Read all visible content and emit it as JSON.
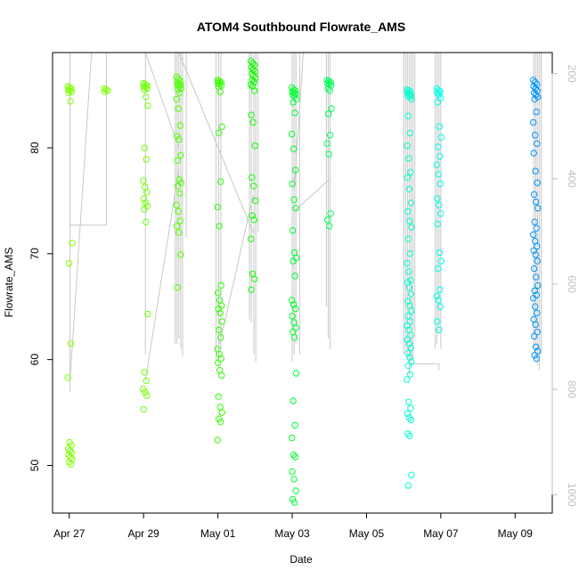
{
  "chart_data": {
    "type": "scatter",
    "title": "ATOM4 Southbound Flowrate_AMS",
    "xlabel": "Date",
    "ylabel": "Flowrate_AMS",
    "x_unit": "days since Apr 27",
    "xlim": [
      -0.45,
      13.0
    ],
    "ylim": [
      45.5,
      89.0
    ],
    "x_ticks": [
      {
        "value": 0,
        "label": "Apr 27"
      },
      {
        "value": 2,
        "label": "Apr 29"
      },
      {
        "value": 4,
        "label": "May 01"
      },
      {
        "value": 6,
        "label": "May 03"
      },
      {
        "value": 8,
        "label": "May 05"
      },
      {
        "value": 10,
        "label": "May 07"
      },
      {
        "value": 12,
        "label": "May 09"
      }
    ],
    "y_ticks": [
      50,
      60,
      70,
      80
    ],
    "secondary_axis": {
      "side": "right",
      "color": "#bfbfbf",
      "ylim": [
        1035,
        160
      ],
      "ticks": [
        200,
        400,
        600,
        800,
        1000
      ]
    },
    "series": [
      {
        "name": "Apr 27",
        "color": "#7fff00",
        "x": 0.02,
        "values": [
          85.8,
          85.7,
          85.6,
          85.5,
          85.4,
          85.3,
          85.2,
          84.4,
          71.0,
          69.1,
          61.5,
          58.3,
          52.2,
          51.9,
          51.6,
          51.4,
          51.2,
          51.0,
          50.8,
          50.6,
          50.3,
          50.1
        ]
      },
      {
        "name": "Apr 28",
        "color": "#7fff00",
        "x": 1.0,
        "values": [
          85.6,
          85.5,
          85.4,
          85.3
        ]
      },
      {
        "name": "Apr 29",
        "color": "#6fff00",
        "x": 2.05,
        "values": [
          86.1,
          86.0,
          85.9,
          85.8,
          85.7,
          85.6,
          85.5,
          84.8,
          84.0,
          80.0,
          78.9,
          76.9,
          76.3,
          75.8,
          75.2,
          74.8,
          74.5,
          74.2,
          73.0,
          64.3,
          58.8,
          58.0,
          57.2,
          56.9,
          56.6,
          55.3
        ]
      },
      {
        "name": "Apr 30",
        "color": "#4fff00",
        "x": 2.95,
        "values": [
          86.7,
          86.5,
          86.3,
          86.2,
          86.1,
          86.0,
          85.9,
          85.8,
          85.6,
          85.5,
          85.2,
          84.6,
          83.7,
          82.1,
          81.1,
          80.8,
          79.3,
          78.8,
          77.0,
          76.7,
          76.4,
          75.7,
          74.6,
          74.0,
          73.1,
          72.6,
          72.0,
          69.9,
          66.8
        ]
      },
      {
        "name": "May 01",
        "color": "#2fff00",
        "x": 4.05,
        "values": [
          86.4,
          86.3,
          86.2,
          86.1,
          86.0,
          85.9,
          85.8,
          85.3,
          82.0,
          81.4,
          76.8,
          74.4,
          72.6,
          67.0,
          66.3,
          65.6,
          65.1,
          64.8,
          64.4,
          63.6,
          62.8,
          62.1,
          61.0,
          60.5,
          60.1,
          59.7,
          59.0,
          58.5,
          56.5,
          55.5,
          55.0,
          54.4,
          54.1,
          52.4
        ]
      },
      {
        "name": "May 02",
        "color": "#0fff00",
        "x": 4.95,
        "values": [
          88.2,
          88.0,
          87.8,
          87.6,
          87.4,
          87.2,
          87.0,
          86.8,
          86.6,
          86.4,
          86.2,
          86.0,
          85.8,
          85.4,
          83.1,
          82.4,
          80.2,
          77.2,
          76.4,
          75.0,
          73.6,
          73.2,
          71.4,
          68.1,
          67.6,
          66.6
        ]
      },
      {
        "name": "May 03",
        "color": "#00ff30",
        "x": 6.05,
        "values": [
          85.7,
          85.5,
          85.4,
          85.3,
          85.2,
          85.1,
          85.0,
          84.9,
          84.6,
          84.3,
          83.3,
          81.3,
          79.9,
          77.9,
          76.6,
          75.1,
          74.3,
          72.2,
          70.1,
          69.6,
          69.3,
          67.9,
          65.6,
          65.2,
          64.8,
          64.1,
          63.5,
          63.0,
          62.6,
          62.1,
          58.7,
          56.1,
          53.8,
          52.6,
          51.0,
          50.8,
          49.4,
          48.7,
          47.6,
          46.8,
          46.5
        ]
      },
      {
        "name": "May 04",
        "color": "#00ff50",
        "x": 7.0,
        "values": [
          86.4,
          86.3,
          86.2,
          86.1,
          86.0,
          85.9,
          85.6,
          85.4,
          83.7,
          83.2,
          81.2,
          80.4,
          79.4,
          73.8,
          73.2,
          72.6
        ]
      },
      {
        "name": "May 06",
        "color": "#00ffd0",
        "x": 9.15,
        "values": [
          85.5,
          85.4,
          85.3,
          85.2,
          85.1,
          85.0,
          84.9,
          84.8,
          84.6,
          83.0,
          81.4,
          80.2,
          79.0,
          77.7,
          77.2,
          76.1,
          74.8,
          74.0,
          73.1,
          72.5,
          71.4,
          70.0,
          69.1,
          68.3,
          67.5,
          67.3,
          66.8,
          66.2,
          65.5,
          65.1,
          64.6,
          64.1,
          63.6,
          63.2,
          62.8,
          62.3,
          61.9,
          61.5,
          61.1,
          60.6,
          60.2,
          59.8,
          59.4,
          58.6,
          58.1,
          56.0,
          55.4,
          54.9,
          54.5,
          54.3,
          53.0,
          52.8,
          49.1,
          48.1
        ]
      },
      {
        "name": "May 07",
        "color": "#00ffe8",
        "x": 9.95,
        "values": [
          85.6,
          85.4,
          85.3,
          85.2,
          85.0,
          84.7,
          84.3,
          82.0,
          81.0,
          80.1,
          79.2,
          78.4,
          77.5,
          76.6,
          75.2,
          74.6,
          73.8,
          72.8,
          70.1,
          69.3,
          68.6,
          66.6,
          66.0,
          65.6,
          65.0,
          63.6,
          62.8
        ]
      },
      {
        "name": "May 09",
        "color": "#0096ff",
        "x": 12.55,
        "values": [
          86.4,
          86.2,
          86.0,
          85.8,
          85.6,
          85.4,
          85.2,
          85.0,
          84.8,
          84.6,
          83.4,
          82.4,
          81.2,
          80.4,
          79.5,
          77.8,
          76.7,
          75.6,
          74.9,
          74.3,
          73.0,
          72.4,
          71.8,
          71.2,
          70.7,
          70.3,
          69.9,
          69.3,
          68.6,
          67.8,
          67.0,
          66.5,
          66.1,
          65.8,
          65.0,
          64.4,
          63.8,
          63.3,
          62.6,
          62.2,
          61.2,
          60.8,
          60.4,
          60.1
        ]
      }
    ],
    "background_trace": {
      "color": "#c8c8c8",
      "segments": [
        {
          "x": [
            0.02,
            0.02,
            1.0,
            1.0
          ],
          "y": [
            89.0,
            72.7,
            72.7,
            89.0
          ]
        },
        {
          "x": [
            0.02,
            0.6
          ],
          "y": [
            58.0,
            89.0
          ]
        },
        {
          "x": [
            2.05,
            2.95
          ],
          "y": [
            89.0,
            80.0
          ]
        },
        {
          "x": [
            2.05,
            2.95
          ],
          "y": [
            58.0,
            78.0
          ]
        },
        {
          "x": [
            2.95,
            4.95
          ],
          "y": [
            89.0,
            72.0
          ]
        },
        {
          "x": [
            4.05,
            4.95
          ],
          "y": [
            61.5,
            75.5
          ]
        },
        {
          "x": [
            6.05,
            7.0
          ],
          "y": [
            74.0,
            77.0
          ]
        },
        {
          "x": [
            6.05,
            6.3,
            7.0
          ],
          "y": [
            76.0,
            89.0,
            89.0
          ]
        },
        {
          "x": [
            9.15,
            9.15,
            9.95,
            9.95
          ],
          "y": [
            59.0,
            59.6,
            59.6,
            59.0
          ]
        }
      ],
      "spikes": [
        {
          "x": 0.02,
          "y_min": 57.0
        },
        {
          "x": 2.05,
          "y_min": 60.5
        },
        {
          "x": 2.85,
          "y_min": 61.5
        },
        {
          "x": 2.9,
          "y_min": 61.5
        },
        {
          "x": 2.95,
          "y_min": 62.0
        },
        {
          "x": 3.0,
          "y_min": 61.0
        },
        {
          "x": 3.05,
          "y_min": 60.3
        },
        {
          "x": 3.15,
          "y_min": 71.5
        },
        {
          "x": 3.95,
          "y_min": 60.0
        },
        {
          "x": 4.02,
          "y_min": 59.5
        },
        {
          "x": 4.08,
          "y_min": 61.0
        },
        {
          "x": 4.85,
          "y_min": 63.8
        },
        {
          "x": 4.9,
          "y_min": 63.5
        },
        {
          "x": 4.97,
          "y_min": 60.5
        },
        {
          "x": 5.02,
          "y_min": 59.8
        },
        {
          "x": 5.08,
          "y_min": 72.0
        },
        {
          "x": 6.0,
          "y_min": 59.8
        },
        {
          "x": 6.05,
          "y_min": 60.5
        },
        {
          "x": 6.1,
          "y_min": 61.5
        },
        {
          "x": 6.2,
          "y_min": 60.5
        },
        {
          "x": 6.92,
          "y_min": 65.0
        },
        {
          "x": 6.97,
          "y_min": 62.0
        },
        {
          "x": 7.02,
          "y_min": 61.0
        },
        {
          "x": 9.0,
          "y_min": 60.5
        },
        {
          "x": 9.05,
          "y_min": 61.0
        },
        {
          "x": 9.1,
          "y_min": 60.0
        },
        {
          "x": 9.15,
          "y_min": 58.5
        },
        {
          "x": 9.2,
          "y_min": 59.5
        },
        {
          "x": 9.25,
          "y_min": 60.0
        },
        {
          "x": 9.3,
          "y_min": 62.0
        },
        {
          "x": 9.85,
          "y_min": 61.0
        },
        {
          "x": 9.9,
          "y_min": 61.5
        },
        {
          "x": 9.95,
          "y_min": 62.5
        },
        {
          "x": 10.0,
          "y_min": 61.0
        },
        {
          "x": 12.5,
          "y_min": 61.0
        },
        {
          "x": 12.55,
          "y_min": 60.0
        },
        {
          "x": 12.6,
          "y_min": 59.5
        },
        {
          "x": 12.65,
          "y_min": 59.0
        },
        {
          "x": 12.7,
          "y_min": 60.5
        }
      ]
    }
  }
}
